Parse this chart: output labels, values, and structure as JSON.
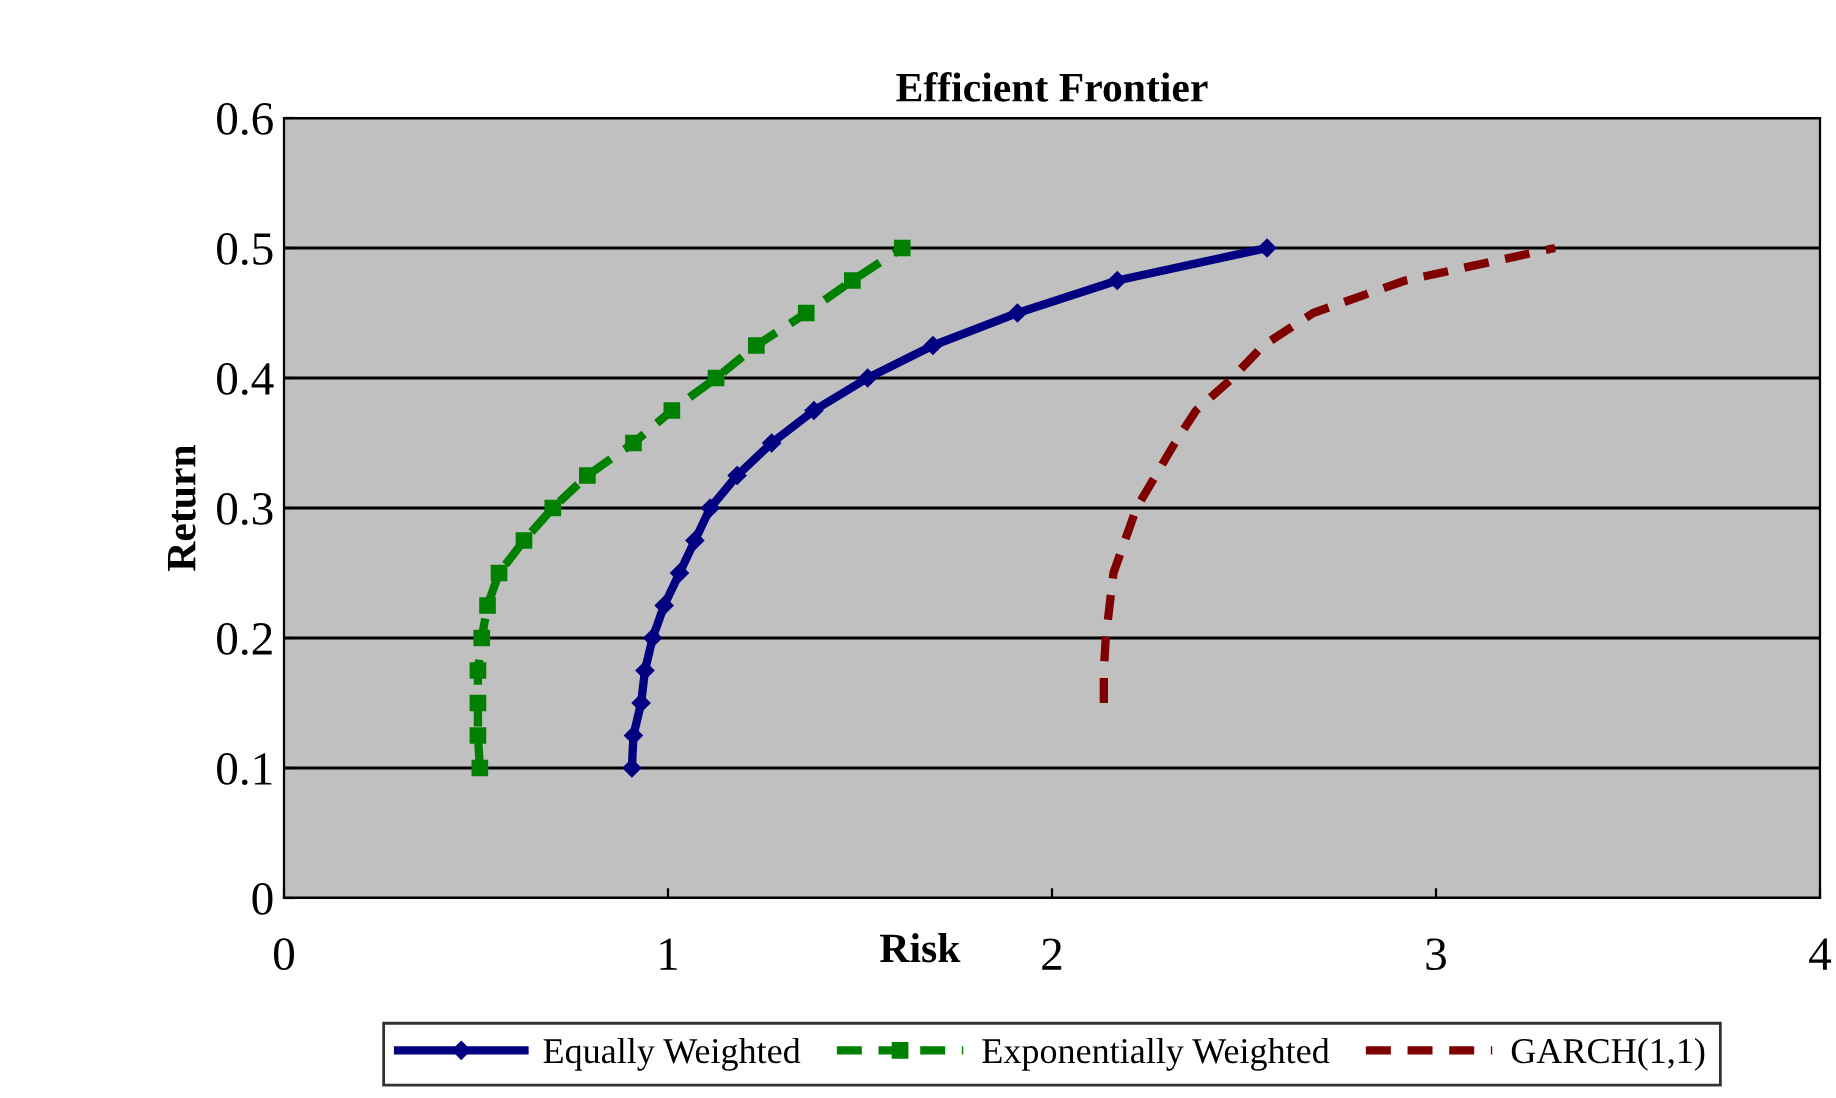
{
  "chart_data": {
    "type": "line",
    "title": "Efficient Frontier",
    "xlabel": "Risk",
    "ylabel": "Return",
    "xlim": [
      0,
      4
    ],
    "ylim": [
      0,
      0.6
    ],
    "xticks": [
      0,
      1,
      2,
      3,
      4
    ],
    "yticks": [
      0,
      0.1,
      0.2,
      0.3,
      0.4,
      0.5,
      0.6
    ],
    "grid": "y",
    "legend": "bottom",
    "series": [
      {
        "name": "Equally Weighted",
        "color": "#000080",
        "marker": "diamond",
        "line_style": "solid",
        "x": [
          0.906,
          0.91,
          0.93,
          0.94,
          0.96,
          0.99,
          1.03,
          1.07,
          1.11,
          1.18,
          1.27,
          1.38,
          1.52,
          1.69,
          1.91,
          2.17,
          2.56
        ],
        "values": [
          0.1,
          0.125,
          0.15,
          0.175,
          0.2,
          0.225,
          0.25,
          0.275,
          0.3,
          0.325,
          0.35,
          0.375,
          0.4,
          0.425,
          0.45,
          0.475,
          0.5
        ]
      },
      {
        "name": "Exponentially Weighted",
        "color": "#008000",
        "marker": "square",
        "line_style": "dashed",
        "x": [
          0.51,
          0.505,
          0.505,
          0.505,
          0.515,
          0.53,
          0.56,
          0.625,
          0.7,
          0.79,
          0.91,
          1.01,
          1.125,
          1.23,
          1.36,
          1.48,
          1.61
        ],
        "values": [
          0.1,
          0.125,
          0.15,
          0.175,
          0.2,
          0.225,
          0.25,
          0.275,
          0.3,
          0.325,
          0.35,
          0.375,
          0.4,
          0.425,
          0.45,
          0.475,
          0.5
        ]
      },
      {
        "name": "GARCH(1,1)",
        "color": "#800000",
        "marker": "none",
        "line_style": "dashed",
        "x": [
          2.135,
          2.135,
          2.14,
          2.16,
          2.19,
          2.22,
          2.27,
          2.32,
          2.375,
          2.47,
          2.55,
          2.68,
          2.92,
          3.31
        ],
        "values": [
          0.15,
          0.175,
          0.2,
          0.25,
          0.275,
          0.3,
          0.325,
          0.35,
          0.375,
          0.4,
          0.425,
          0.45,
          0.475,
          0.5
        ]
      }
    ]
  }
}
